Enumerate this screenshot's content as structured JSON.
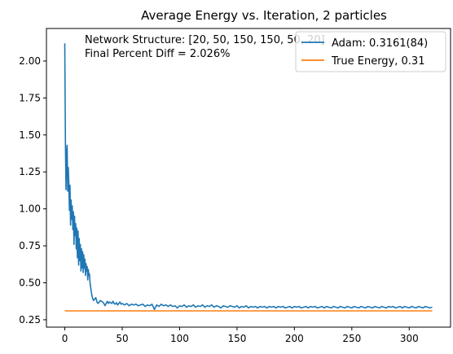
{
  "chart_data": {
    "type": "line",
    "title": "Average Energy vs. Iteration, 2 particles",
    "xlabel": "",
    "ylabel": "",
    "xlim": [
      -16,
      336
    ],
    "ylim": [
      0.2,
      2.22
    ],
    "xticks": [
      0,
      50,
      100,
      150,
      200,
      250,
      300
    ],
    "yticks": [
      0.25,
      0.5,
      0.75,
      1.0,
      1.25,
      1.5,
      1.75,
      2.0
    ],
    "xtick_labels": [
      "0",
      "50",
      "100",
      "150",
      "200",
      "250",
      "300"
    ],
    "ytick_labels": [
      "0.25",
      "0.50",
      "0.75",
      "1.00",
      "1.25",
      "1.50",
      "1.75",
      "2.00"
    ],
    "grid": false,
    "legend_position": "top-right",
    "annotations": [
      "Network Structure: [20, 50, 150, 150, 50, 20]",
      "Final Percent Diff = 2.026%"
    ],
    "series": [
      {
        "name": "Adam: 0.3161(84)",
        "color": "#1f77b4",
        "points": [
          [
            0,
            2.12
          ],
          [
            0.5,
            1.45
          ],
          [
            1,
            1.13
          ],
          [
            1.5,
            1.38
          ],
          [
            2,
            1.43
          ],
          [
            2.5,
            1.12
          ],
          [
            3,
            1.28
          ],
          [
            3.5,
            1.17
          ],
          [
            4,
            0.99
          ],
          [
            4.5,
            1.16
          ],
          [
            5,
            0.89
          ],
          [
            5.5,
            1.06
          ],
          [
            6,
            0.93
          ],
          [
            6.5,
            1.02
          ],
          [
            7,
            0.86
          ],
          [
            7.5,
            0.98
          ],
          [
            8,
            0.76
          ],
          [
            8.5,
            0.95
          ],
          [
            9,
            0.82
          ],
          [
            9.5,
            0.9
          ],
          [
            10,
            0.73
          ],
          [
            10.5,
            0.87
          ],
          [
            11,
            0.67
          ],
          [
            11.5,
            0.85
          ],
          [
            12,
            0.62
          ],
          [
            12.5,
            0.8
          ],
          [
            13,
            0.65
          ],
          [
            13.5,
            0.76
          ],
          [
            14,
            0.58
          ],
          [
            14.5,
            0.73
          ],
          [
            15,
            0.6
          ],
          [
            15.5,
            0.71
          ],
          [
            16,
            0.57
          ],
          [
            16.5,
            0.69
          ],
          [
            17,
            0.6
          ],
          [
            17.5,
            0.66
          ],
          [
            18,
            0.55
          ],
          [
            18.5,
            0.63
          ],
          [
            19,
            0.58
          ],
          [
            19.5,
            0.61
          ],
          [
            20,
            0.52
          ],
          [
            20.5,
            0.59
          ],
          [
            21,
            0.55
          ],
          [
            21.5,
            0.56
          ],
          [
            22,
            0.5
          ],
          [
            23,
            0.44
          ],
          [
            24,
            0.4
          ],
          [
            25,
            0.38
          ],
          [
            26,
            0.39
          ],
          [
            27,
            0.4
          ],
          [
            28,
            0.37
          ],
          [
            29,
            0.36
          ],
          [
            30,
            0.37
          ],
          [
            31,
            0.38
          ],
          [
            32,
            0.375
          ],
          [
            33,
            0.37
          ],
          [
            34,
            0.36
          ],
          [
            35,
            0.345
          ],
          [
            36,
            0.36
          ],
          [
            37,
            0.375
          ],
          [
            38,
            0.36
          ],
          [
            39,
            0.37
          ],
          [
            40,
            0.365
          ],
          [
            41,
            0.36
          ],
          [
            42,
            0.375
          ],
          [
            43,
            0.36
          ],
          [
            44,
            0.355
          ],
          [
            45,
            0.365
          ],
          [
            46,
            0.35
          ],
          [
            47,
            0.36
          ],
          [
            48,
            0.37
          ],
          [
            49,
            0.355
          ],
          [
            50,
            0.36
          ],
          [
            52,
            0.35
          ],
          [
            54,
            0.36
          ],
          [
            56,
            0.345
          ],
          [
            58,
            0.355
          ],
          [
            60,
            0.35
          ],
          [
            62,
            0.355
          ],
          [
            64,
            0.345
          ],
          [
            66,
            0.35
          ],
          [
            68,
            0.355
          ],
          [
            70,
            0.34
          ],
          [
            72,
            0.35
          ],
          [
            74,
            0.345
          ],
          [
            76,
            0.355
          ],
          [
            78,
            0.32
          ],
          [
            80,
            0.35
          ],
          [
            82,
            0.34
          ],
          [
            84,
            0.355
          ],
          [
            86,
            0.345
          ],
          [
            88,
            0.35
          ],
          [
            90,
            0.34
          ],
          [
            92,
            0.35
          ],
          [
            94,
            0.34
          ],
          [
            96,
            0.345
          ],
          [
            98,
            0.33
          ],
          [
            100,
            0.345
          ],
          [
            102,
            0.34
          ],
          [
            104,
            0.35
          ],
          [
            106,
            0.335
          ],
          [
            108,
            0.345
          ],
          [
            110,
            0.34
          ],
          [
            112,
            0.35
          ],
          [
            114,
            0.335
          ],
          [
            116,
            0.345
          ],
          [
            118,
            0.34
          ],
          [
            120,
            0.35
          ],
          [
            122,
            0.335
          ],
          [
            124,
            0.345
          ],
          [
            126,
            0.34
          ],
          [
            128,
            0.35
          ],
          [
            130,
            0.335
          ],
          [
            132,
            0.345
          ],
          [
            134,
            0.34
          ],
          [
            136,
            0.33
          ],
          [
            138,
            0.345
          ],
          [
            140,
            0.34
          ],
          [
            142,
            0.335
          ],
          [
            144,
            0.345
          ],
          [
            146,
            0.34
          ],
          [
            148,
            0.335
          ],
          [
            150,
            0.345
          ],
          [
            152,
            0.33
          ],
          [
            154,
            0.34
          ],
          [
            156,
            0.335
          ],
          [
            158,
            0.345
          ],
          [
            160,
            0.33
          ],
          [
            162,
            0.34
          ],
          [
            164,
            0.335
          ],
          [
            166,
            0.34
          ],
          [
            168,
            0.33
          ],
          [
            170,
            0.34
          ],
          [
            172,
            0.335
          ],
          [
            174,
            0.34
          ],
          [
            176,
            0.33
          ],
          [
            178,
            0.34
          ],
          [
            180,
            0.335
          ],
          [
            182,
            0.34
          ],
          [
            184,
            0.33
          ],
          [
            186,
            0.34
          ],
          [
            188,
            0.335
          ],
          [
            190,
            0.34
          ],
          [
            192,
            0.33
          ],
          [
            194,
            0.335
          ],
          [
            196,
            0.34
          ],
          [
            198,
            0.33
          ],
          [
            200,
            0.34
          ],
          [
            202,
            0.335
          ],
          [
            204,
            0.34
          ],
          [
            206,
            0.33
          ],
          [
            208,
            0.335
          ],
          [
            210,
            0.34
          ],
          [
            212,
            0.33
          ],
          [
            214,
            0.34
          ],
          [
            216,
            0.335
          ],
          [
            218,
            0.34
          ],
          [
            220,
            0.33
          ],
          [
            222,
            0.335
          ],
          [
            224,
            0.34
          ],
          [
            226,
            0.33
          ],
          [
            228,
            0.34
          ],
          [
            230,
            0.335
          ],
          [
            232,
            0.33
          ],
          [
            234,
            0.34
          ],
          [
            236,
            0.335
          ],
          [
            238,
            0.33
          ],
          [
            240,
            0.34
          ],
          [
            242,
            0.335
          ],
          [
            244,
            0.33
          ],
          [
            246,
            0.34
          ],
          [
            248,
            0.335
          ],
          [
            250,
            0.33
          ],
          [
            252,
            0.34
          ],
          [
            254,
            0.335
          ],
          [
            256,
            0.33
          ],
          [
            258,
            0.34
          ],
          [
            260,
            0.335
          ],
          [
            262,
            0.33
          ],
          [
            264,
            0.34
          ],
          [
            266,
            0.335
          ],
          [
            268,
            0.33
          ],
          [
            270,
            0.34
          ],
          [
            272,
            0.335
          ],
          [
            274,
            0.33
          ],
          [
            276,
            0.34
          ],
          [
            278,
            0.335
          ],
          [
            280,
            0.33
          ],
          [
            282,
            0.34
          ],
          [
            284,
            0.335
          ],
          [
            286,
            0.34
          ],
          [
            288,
            0.33
          ],
          [
            290,
            0.335
          ],
          [
            292,
            0.34
          ],
          [
            294,
            0.33
          ],
          [
            296,
            0.34
          ],
          [
            298,
            0.335
          ],
          [
            300,
            0.33
          ],
          [
            302,
            0.34
          ],
          [
            304,
            0.335
          ],
          [
            306,
            0.33
          ],
          [
            308,
            0.34
          ],
          [
            310,
            0.335
          ],
          [
            312,
            0.33
          ],
          [
            314,
            0.34
          ],
          [
            316,
            0.335
          ],
          [
            318,
            0.33
          ],
          [
            320,
            0.335
          ]
        ]
      },
      {
        "name": "True Energy, 0.31",
        "color": "#ff7f0e",
        "points": [
          [
            0,
            0.31
          ],
          [
            320,
            0.31
          ]
        ]
      }
    ]
  }
}
